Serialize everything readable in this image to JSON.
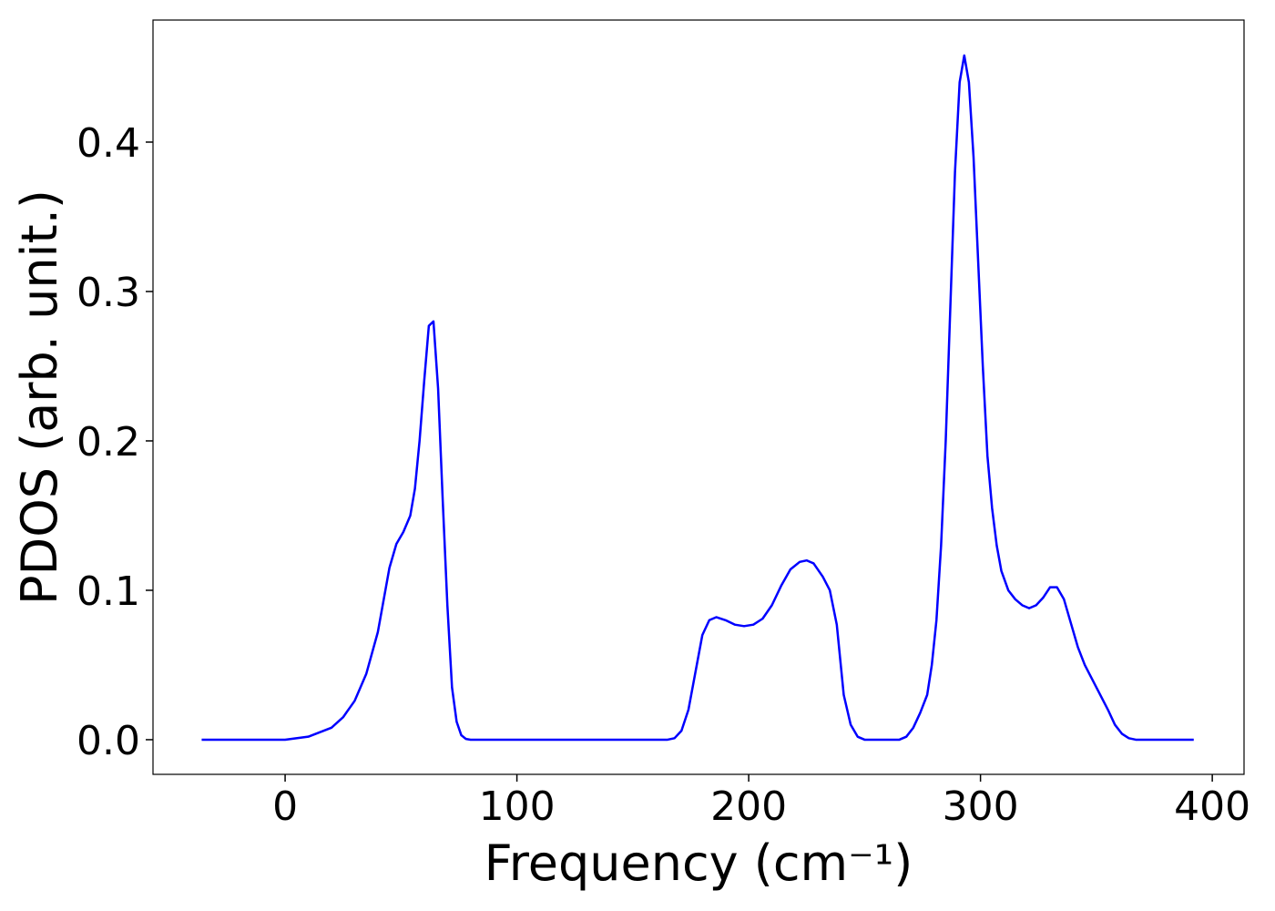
{
  "chart_data": {
    "type": "line",
    "xlabel": "Frequency (cm⁻¹)",
    "ylabel": "PDOS (arb. unit.)",
    "xlim": [
      -57,
      413.7
    ],
    "ylim": [
      -0.0232,
      0.4817
    ],
    "xticks": [
      0,
      100,
      200,
      300,
      400
    ],
    "yticks": [
      {
        "value": 0,
        "label": "0.0"
      },
      0.1,
      0.2,
      0.3,
      0.4
    ],
    "grid": false,
    "series": [
      {
        "color": "#0000ff",
        "x": [
          -36,
          0,
          10,
          20,
          25,
          30,
          35,
          40,
          45,
          48,
          51,
          54,
          56,
          58,
          60,
          62,
          64,
          66,
          68,
          70,
          72,
          74,
          76,
          78,
          80,
          100,
          150,
          165,
          168,
          171,
          174,
          177,
          180,
          183,
          186,
          190,
          194,
          198,
          202,
          206,
          210,
          214,
          218,
          222,
          225,
          228,
          232,
          235,
          238,
          241,
          244,
          247,
          250,
          265,
          268,
          271,
          274,
          277,
          279,
          281,
          283,
          285,
          287,
          289,
          291,
          293,
          295,
          297,
          299,
          301,
          303,
          305,
          307,
          309,
          312,
          315,
          318,
          321,
          324,
          327,
          330,
          333,
          336,
          339,
          342,
          345,
          350,
          355,
          358,
          361,
          364,
          367,
          392
        ],
        "values": [
          0,
          0,
          0.002,
          0.008,
          0.015,
          0.026,
          0.044,
          0.072,
          0.115,
          0.131,
          0.139,
          0.15,
          0.168,
          0.2,
          0.24,
          0.277,
          0.28,
          0.235,
          0.16,
          0.09,
          0.035,
          0.012,
          0.003,
          0.0005,
          0,
          0,
          0,
          0,
          0.001,
          0.006,
          0.02,
          0.045,
          0.07,
          0.08,
          0.082,
          0.08,
          0.077,
          0.076,
          0.077,
          0.081,
          0.09,
          0.103,
          0.114,
          0.119,
          0.12,
          0.118,
          0.109,
          0.1,
          0.077,
          0.03,
          0.01,
          0.002,
          0,
          0,
          0.002,
          0.008,
          0.018,
          0.03,
          0.05,
          0.08,
          0.13,
          0.2,
          0.29,
          0.38,
          0.44,
          0.458,
          0.44,
          0.39,
          0.32,
          0.25,
          0.19,
          0.155,
          0.13,
          0.113,
          0.1,
          0.094,
          0.09,
          0.088,
          0.09,
          0.095,
          0.102,
          0.102,
          0.094,
          0.078,
          0.062,
          0.05,
          0.035,
          0.02,
          0.01,
          0.004,
          0.001,
          0,
          0
        ]
      }
    ]
  }
}
